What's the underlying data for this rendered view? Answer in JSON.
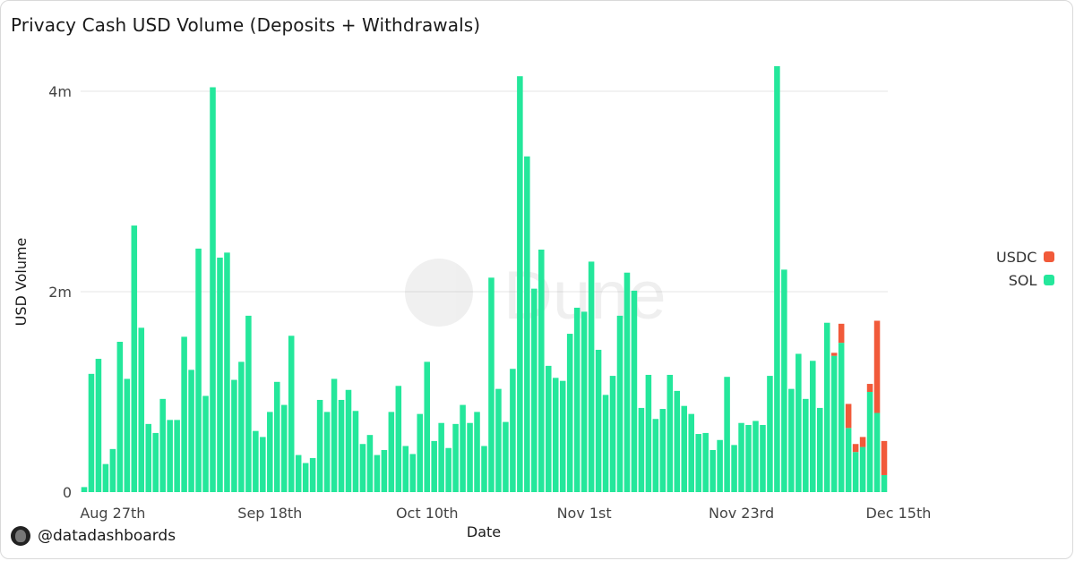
{
  "chart_data": {
    "type": "bar",
    "stacked": true,
    "title": "Privacy Cash USD Volume (Deposits + Withdrawals)",
    "xlabel": "Date",
    "ylabel": "USD Volume",
    "ylim": [
      0,
      4400000
    ],
    "y_ticks": [
      0,
      2000000,
      4000000
    ],
    "y_tick_labels": [
      "0",
      "2m",
      "4m"
    ],
    "x_tick_labels": [
      "Aug 27th",
      "Sep 18th",
      "Oct 10th",
      "Nov 1st",
      "Nov 23rd",
      "Dec 15th"
    ],
    "x_tick_indices": [
      4,
      26,
      48,
      70,
      92,
      114
    ],
    "grid": true,
    "legend_position": "right",
    "watermark": "Dune",
    "series": [
      {
        "name": "SOL",
        "color": "#24e79b",
        "values": [
          50000,
          1180000,
          1330000,
          280000,
          430000,
          1500000,
          1130000,
          2660000,
          1640000,
          680000,
          590000,
          930000,
          720000,
          720000,
          1550000,
          1220000,
          2430000,
          960000,
          4040000,
          2340000,
          2390000,
          1120000,
          1300000,
          1760000,
          610000,
          550000,
          800000,
          1100000,
          870000,
          1560000,
          370000,
          290000,
          340000,
          920000,
          800000,
          1130000,
          920000,
          1020000,
          810000,
          480000,
          570000,
          370000,
          420000,
          800000,
          1060000,
          460000,
          380000,
          780000,
          1300000,
          510000,
          690000,
          440000,
          680000,
          870000,
          690000,
          800000,
          460000,
          2140000,
          1030000,
          700000,
          1230000,
          4150000,
          3350000,
          2030000,
          2420000,
          1260000,
          1140000,
          1110000,
          1580000,
          1840000,
          1800000,
          2300000,
          1420000,
          970000,
          1160000,
          1760000,
          2190000,
          2010000,
          840000,
          1170000,
          730000,
          830000,
          1170000,
          1010000,
          860000,
          780000,
          580000,
          590000,
          420000,
          520000,
          1150000,
          470000,
          690000,
          670000,
          710000,
          670000,
          1160000,
          4250000,
          2220000,
          1030000,
          1380000,
          930000,
          1310000,
          840000,
          1690000,
          1360000,
          1490000,
          640000,
          400000,
          450000,
          1000000,
          790000,
          170000
        ],
        "values_note": ""
      },
      {
        "name": "USDC",
        "color": "#f15a3a",
        "values": [
          0,
          0,
          0,
          0,
          0,
          0,
          0,
          0,
          0,
          0,
          0,
          0,
          0,
          0,
          0,
          0,
          0,
          0,
          0,
          0,
          0,
          0,
          0,
          0,
          0,
          0,
          0,
          0,
          0,
          0,
          0,
          0,
          0,
          0,
          0,
          0,
          0,
          0,
          0,
          0,
          0,
          0,
          0,
          0,
          0,
          0,
          0,
          0,
          0,
          0,
          0,
          0,
          0,
          0,
          0,
          0,
          0,
          0,
          0,
          0,
          0,
          0,
          0,
          0,
          0,
          0,
          0,
          0,
          0,
          0,
          0,
          0,
          0,
          0,
          0,
          0,
          0,
          0,
          0,
          0,
          0,
          0,
          0,
          0,
          0,
          0,
          0,
          0,
          0,
          0,
          0,
          0,
          0,
          0,
          0,
          0,
          0,
          0,
          0,
          0,
          0,
          0,
          0,
          0,
          0,
          30000,
          190000,
          240000,
          80000,
          100000,
          80000,
          920000,
          340000
        ]
      }
    ]
  },
  "legend": {
    "items": [
      {
        "label": "USDC",
        "color": "#f15a3a"
      },
      {
        "label": "SOL",
        "color": "#24e79b"
      }
    ]
  },
  "credit": {
    "handle": "@datadashboards"
  }
}
